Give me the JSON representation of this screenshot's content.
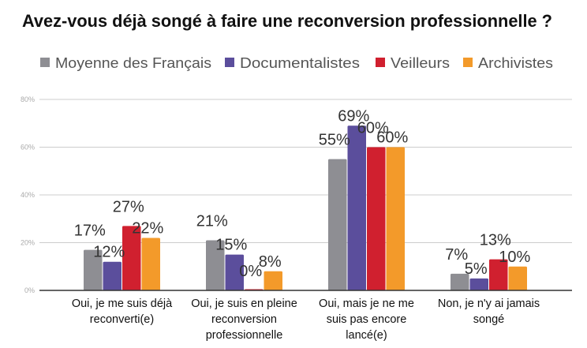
{
  "chart_data": {
    "type": "bar",
    "title": "Avez-vous déjà songé à faire une reconversion professionnelle ?",
    "categories": [
      [
        "Oui, je me suis déjà",
        "reconverti(e)"
      ],
      [
        "Oui, je suis en pleine",
        "reconversion",
        "professionnelle"
      ],
      [
        "Oui, mais je ne me",
        "suis pas encore",
        "lancé(e)"
      ],
      [
        "Non, je n'y ai jamais",
        "songé"
      ]
    ],
    "series": [
      {
        "name": "Moyenne des Français",
        "color": "#8e8e93",
        "values": [
          17,
          21,
          55,
          7
        ]
      },
      {
        "name": "Documentalistes",
        "color": "#5b4e9c",
        "values": [
          12,
          15,
          69,
          5
        ]
      },
      {
        "name": "Veilleurs",
        "color": "#d0202f",
        "values": [
          27,
          0,
          60,
          13
        ]
      },
      {
        "name": "Archivistes",
        "color": "#f39a2a",
        "values": [
          22,
          8,
          60,
          10
        ]
      }
    ],
    "value_suffix": "%",
    "ylim": [
      0,
      80
    ],
    "yticks": [
      "0%",
      "20%",
      "40%",
      "60%",
      "80%"
    ],
    "ytick_values": [
      0,
      20,
      40,
      60,
      80
    ],
    "grid": true,
    "legend_position": "top"
  }
}
